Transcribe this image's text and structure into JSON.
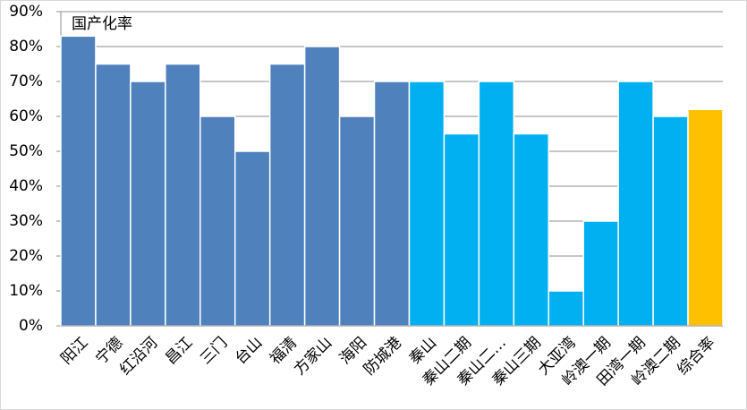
{
  "chart_data": {
    "type": "bar",
    "title": "国产化率",
    "categories": [
      "阳江",
      "宁德",
      "红沿河",
      "昌江",
      "三门",
      "台山",
      "福清",
      "方家山",
      "海阳",
      "防城港",
      "秦山",
      "秦山二期",
      "秦山二…",
      "秦山三期",
      "大亚湾",
      "岭澳一期",
      "田湾一期",
      "岭澳二期",
      "综合率"
    ],
    "values": [
      83,
      75,
      70,
      75,
      60,
      50,
      75,
      80,
      60,
      70,
      70,
      55,
      70,
      55,
      10,
      30,
      70,
      60,
      62
    ],
    "colors": [
      "#4f81bd",
      "#4f81bd",
      "#4f81bd",
      "#4f81bd",
      "#4f81bd",
      "#4f81bd",
      "#4f81bd",
      "#4f81bd",
      "#4f81bd",
      "#4f81bd",
      "#00b0f0",
      "#00b0f0",
      "#00b0f0",
      "#00b0f0",
      "#00b0f0",
      "#00b0f0",
      "#00b0f0",
      "#00b0f0",
      "#ffc000"
    ],
    "ylim": [
      0,
      90
    ],
    "yticks": [
      {
        "value": 0,
        "label": "0%"
      },
      {
        "value": 10,
        "label": "10%"
      },
      {
        "value": 20,
        "label": "20%"
      },
      {
        "value": 30,
        "label": "30%"
      },
      {
        "value": 40,
        "label": "40%"
      },
      {
        "value": 50,
        "label": "50%"
      },
      {
        "value": 60,
        "label": "60%"
      },
      {
        "value": 70,
        "label": "70%"
      },
      {
        "value": 80,
        "label": "80%"
      },
      {
        "value": 90,
        "label": "90%"
      }
    ],
    "grid": true
  }
}
